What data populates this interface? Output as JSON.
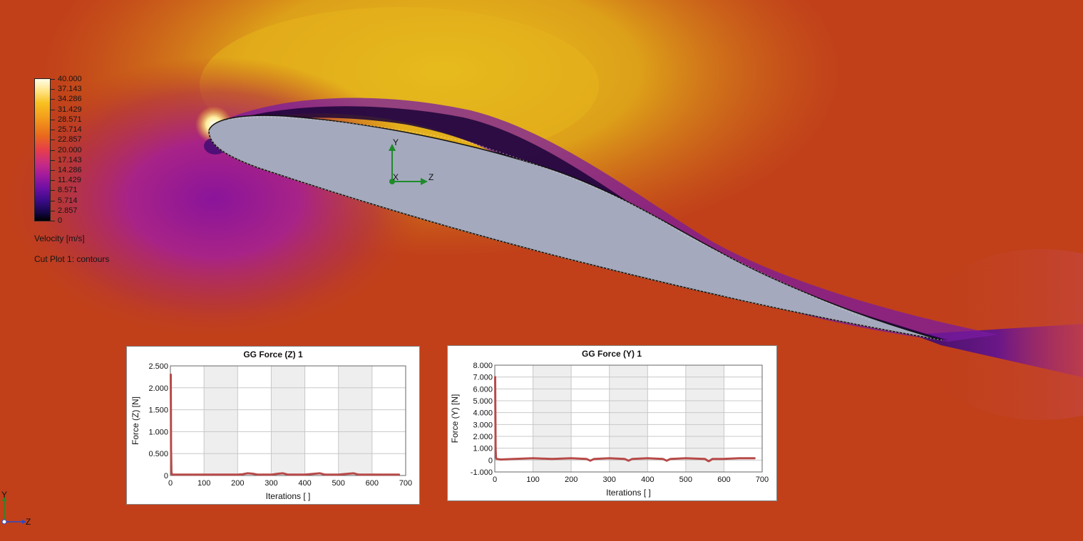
{
  "legend": {
    "ticks": [
      "40.000",
      "37.143",
      "34.286",
      "31.429",
      "28.571",
      "25.714",
      "22.857",
      "20.000",
      "17.143",
      "14.286",
      "11.429",
      "8.571",
      "5.714",
      "2.857",
      "0"
    ],
    "unit_label": "Velocity [m/s]",
    "plot_label": "Cut Plot 1: contours"
  },
  "triad": {
    "main": {
      "y_label": "Y",
      "x_label": "X",
      "z_label": "Z"
    },
    "corner": {
      "y_label": "Y",
      "z_label": "Z"
    }
  },
  "colors": {
    "background": "#c1401a",
    "airfoil": "#a4a9bd",
    "series": "#b74a48",
    "triad": "#1f8a2a"
  },
  "chart_data": [
    {
      "type": "line",
      "title": "GG Force (Z) 1",
      "xlabel": "Iterations [ ]",
      "ylabel": "Force (Z) [N]",
      "xlim": [
        0,
        700
      ],
      "ylim": [
        0,
        2.5
      ],
      "x_ticks": [
        0,
        100,
        200,
        300,
        400,
        500,
        600,
        700
      ],
      "x_tick_labels": [
        "0",
        "100",
        "200",
        "300",
        "400",
        "500",
        "600",
        "700"
      ],
      "y_ticks": [
        0,
        0.5,
        1.0,
        1.5,
        2.0,
        2.5
      ],
      "y_tick_labels": [
        "0",
        "0.500",
        "1.000",
        "1.500",
        "2.000",
        "2.500"
      ],
      "grid": true,
      "series": [
        {
          "x": [
            1,
            2,
            3,
            4,
            8,
            20,
            50,
            100,
            150,
            200,
            215,
            230,
            245,
            260,
            300,
            320,
            335,
            350,
            400,
            430,
            445,
            460,
            500,
            530,
            545,
            560,
            600,
            640,
            680
          ],
          "y": [
            2.3,
            0.6,
            0.1,
            0.03,
            0.02,
            0.02,
            0.02,
            0.02,
            0.02,
            0.02,
            0.03,
            0.05,
            0.04,
            0.02,
            0.02,
            0.04,
            0.05,
            0.02,
            0.02,
            0.04,
            0.05,
            0.02,
            0.02,
            0.04,
            0.05,
            0.02,
            0.02,
            0.02,
            0.02
          ]
        }
      ]
    },
    {
      "type": "line",
      "title": "GG Force (Y) 1",
      "xlabel": "Iterations [ ]",
      "ylabel": "Force (Y) [N]",
      "xlim": [
        0,
        700
      ],
      "ylim": [
        -1,
        8
      ],
      "x_ticks": [
        0,
        100,
        200,
        300,
        400,
        500,
        600,
        700
      ],
      "x_tick_labels": [
        "0",
        "100",
        "200",
        "300",
        "400",
        "500",
        "600",
        "700"
      ],
      "y_ticks": [
        -1,
        0,
        1,
        2,
        3,
        4,
        5,
        6,
        7,
        8
      ],
      "y_tick_labels": [
        "-1.000",
        "0",
        "1.000",
        "2.000",
        "3.000",
        "4.000",
        "5.000",
        "6.000",
        "7.000",
        "8.000"
      ],
      "grid": true,
      "series": [
        {
          "x": [
            1,
            2,
            3,
            5,
            15,
            50,
            100,
            150,
            200,
            240,
            250,
            260,
            300,
            340,
            350,
            360,
            400,
            440,
            450,
            460,
            500,
            550,
            560,
            570,
            600,
            640,
            680
          ],
          "y": [
            7.0,
            1.0,
            0.2,
            0.1,
            0.05,
            0.1,
            0.15,
            0.1,
            0.15,
            0.1,
            -0.05,
            0.1,
            0.15,
            0.1,
            -0.05,
            0.1,
            0.15,
            0.1,
            -0.05,
            0.1,
            0.15,
            0.1,
            -0.1,
            0.1,
            0.1,
            0.15,
            0.15
          ]
        }
      ]
    }
  ]
}
